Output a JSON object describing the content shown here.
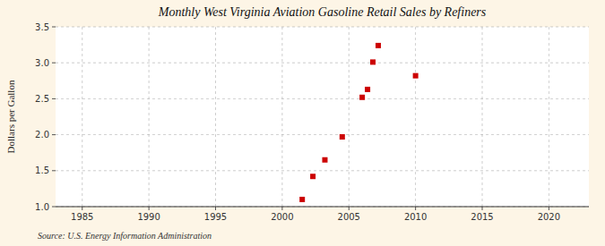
{
  "chart_data": {
    "type": "scatter",
    "title": "Monthly West Virginia Aviation Gasoline Retail Sales by Refiners",
    "y_label": "Dollars per Gallon",
    "source": "Source: U.S. Energy Information Administration",
    "x": [
      2001.5,
      2002.3,
      2003.2,
      2004.5,
      2006.0,
      2006.4,
      2006.8,
      2007.2,
      2010.0
    ],
    "values": [
      1.1,
      1.42,
      1.65,
      1.97,
      2.52,
      2.63,
      3.01,
      3.24,
      2.82
    ],
    "xlim": [
      1983,
      2023
    ],
    "ylim": [
      1.0,
      3.5
    ],
    "xticks": [
      1985,
      1990,
      1995,
      2000,
      2005,
      2010,
      2015,
      2020
    ],
    "yticks": [
      {
        "value": 1.0,
        "label": "1.0"
      },
      1.5,
      {
        "value": 2.0,
        "label": "2.0"
      },
      2.5,
      {
        "value": 3.0,
        "label": "3.0"
      },
      3.5
    ],
    "color": "#cc0000",
    "marker": "square",
    "grid": true
  }
}
